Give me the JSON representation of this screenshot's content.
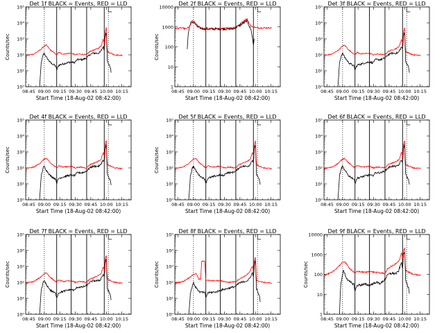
{
  "chart_data": [
    {
      "title": "Det 1f BLACK = Events, RED = LLD",
      "type": "line",
      "ylabel": "Counts/sec",
      "xlabel": "Start Time (18-Aug-02 08:42:00)",
      "y_scale": "log",
      "ytick_style": "exp",
      "ylim_exp": [
        0,
        5
      ],
      "ytick_labels": [
        "10⁰",
        "10¹",
        "10²",
        "10³",
        "10⁴",
        "10⁵"
      ],
      "shape": "A",
      "series": [
        {
          "name": "BLACK = Events",
          "color": "#000000"
        },
        {
          "name": "RED = LLD",
          "color": "#ff0000"
        }
      ]
    },
    {
      "title": "Det 2f BLACK = Events, RED = LLD",
      "type": "line",
      "ylabel": "Counts/sec",
      "xlabel": "Start Time (18-Aug-02 08:42:00)",
      "y_scale": "log",
      "ytick_style": "plain",
      "ylim_exp": [
        0,
        4
      ],
      "ytick_labels": [
        "1",
        "10",
        "100",
        "1000",
        "10000"
      ],
      "shape": "B",
      "series": [
        {
          "name": "BLACK = Events",
          "color": "#000000"
        },
        {
          "name": "RED = LLD",
          "color": "#ff0000"
        }
      ]
    },
    {
      "title": "Det 3f BLACK = Events, RED = LLD",
      "type": "line",
      "ylabel": "",
      "xlabel": "Start Time (18-Aug-02 08:42:00)",
      "y_scale": "log",
      "ytick_style": "exp",
      "ylim_exp": [
        0,
        5
      ],
      "ytick_labels": [
        "10⁰",
        "10¹",
        "10²",
        "10³",
        "10⁴",
        "10⁵"
      ],
      "shape": "A",
      "series": [
        {
          "name": "BLACK = Events",
          "color": "#000000"
        },
        {
          "name": "RED = LLD",
          "color": "#ff0000"
        }
      ]
    },
    {
      "title": "Det 4f BLACK = Events, RED = LLD",
      "type": "line",
      "ylabel": "Counts/sec",
      "xlabel": "Start Time (18-Aug-02 08:42:00)",
      "y_scale": "log",
      "ytick_style": "exp",
      "ylim_exp": [
        0,
        5
      ],
      "ytick_labels": [
        "10⁰",
        "10¹",
        "10²",
        "10³",
        "10⁴",
        "10⁵"
      ],
      "shape": "A",
      "series": [
        {
          "name": "BLACK = Events",
          "color": "#000000"
        },
        {
          "name": "RED = LLD",
          "color": "#ff0000"
        }
      ]
    },
    {
      "title": "Det 5f BLACK = Events, RED = LLD",
      "type": "line",
      "ylabel": "Counts/sec",
      "xlabel": "Start Time (18-Aug-02 08:42:00)",
      "y_scale": "log",
      "ytick_style": "exp",
      "ylim_exp": [
        0,
        5
      ],
      "ytick_labels": [
        "10⁰",
        "10¹",
        "10²",
        "10³",
        "10⁴",
        "10⁵"
      ],
      "shape": "A",
      "series": [
        {
          "name": "BLACK = Events",
          "color": "#000000"
        },
        {
          "name": "RED = LLD",
          "color": "#ff0000"
        }
      ]
    },
    {
      "title": "Det 6f BLACK = Events, RED = LLD",
      "type": "line",
      "ylabel": "",
      "xlabel": "Start Time (18-Aug-02 08:42:00)",
      "y_scale": "log",
      "ytick_style": "exp",
      "ylim_exp": [
        0,
        5
      ],
      "ytick_labels": [
        "10⁰",
        "10¹",
        "10²",
        "10³",
        "10⁴",
        "10⁵"
      ],
      "shape": "A",
      "series": [
        {
          "name": "BLACK = Events",
          "color": "#000000"
        },
        {
          "name": "RED = LLD",
          "color": "#ff0000"
        }
      ]
    },
    {
      "title": "Det 7f BLACK = Events, RED = LLD",
      "type": "line",
      "ylabel": "Counts/sec",
      "xlabel": "Start Time (18-Aug-02 08:42:00)",
      "y_scale": "log",
      "ytick_style": "exp",
      "ylim_exp": [
        0,
        5
      ],
      "ytick_labels": [
        "10⁰",
        "10¹",
        "10²",
        "10³",
        "10⁴",
        "10⁵"
      ],
      "shape": "A",
      "series": [
        {
          "name": "BLACK = Events",
          "color": "#000000"
        },
        {
          "name": "RED = LLD",
          "color": "#ff0000"
        }
      ]
    },
    {
      "title": "Det 8f BLACK = Events, RED = LLD",
      "type": "line",
      "ylabel": "Counts/sec",
      "xlabel": "Start Time (18-Aug-02 08:42:00)",
      "y_scale": "log",
      "ytick_style": "exp",
      "ylim_exp": [
        0,
        5
      ],
      "ytick_labels": [
        "10⁰",
        "10¹",
        "10²",
        "10³",
        "10⁴",
        "10⁵"
      ],
      "shape": "C",
      "series": [
        {
          "name": "BLACK = Events",
          "color": "#000000"
        },
        {
          "name": "RED = LLD",
          "color": "#ff0000"
        }
      ]
    },
    {
      "title": "Det 9f BLACK = Events, RED = LLD",
      "type": "line",
      "ylabel": "Counts/sec",
      "xlabel": "Start Time (18-Aug-02 08:42:00)",
      "y_scale": "log",
      "ytick_style": "plain",
      "ylim_exp": [
        0,
        4
      ],
      "ytick_labels": [
        "1",
        "10",
        "100",
        "1000",
        "10000"
      ],
      "shape": "D",
      "series": [
        {
          "name": "BLACK = Events",
          "color": "#000000"
        },
        {
          "name": "RED = LLD",
          "color": "#ff0000"
        }
      ]
    }
  ],
  "shared": {
    "xtick_labels": [
      "08:45",
      "09:00",
      "09:15",
      "09:30",
      "09:45",
      "10:00",
      "10:15"
    ],
    "xtick_minutes": [
      3,
      18,
      33,
      48,
      63,
      78,
      93
    ],
    "xlim_minutes": [
      0,
      102
    ],
    "solid_markers_minutes": [
      30,
      44,
      59,
      76
    ],
    "dotted_markers_minutes": [
      18,
      80
    ]
  }
}
